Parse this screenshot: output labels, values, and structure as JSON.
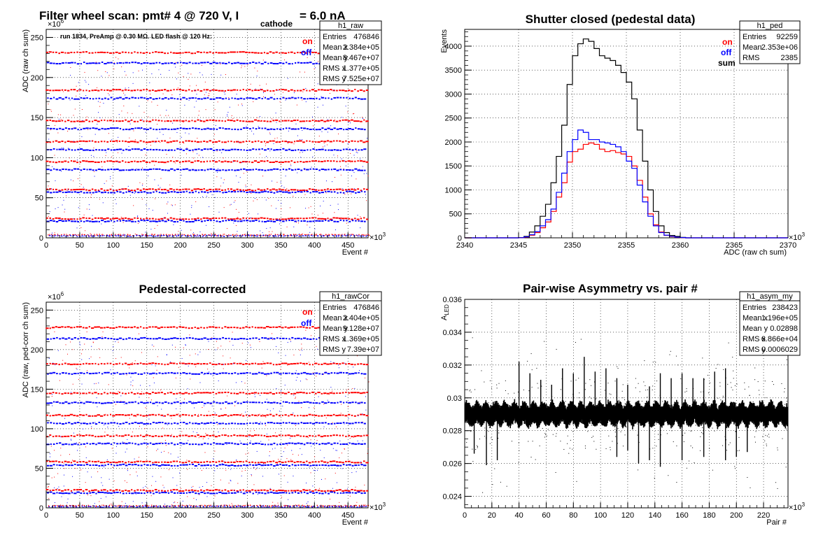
{
  "canvas": {
    "background": "#ffffff",
    "colors": {
      "on": "#ff0000",
      "off": "#0000ff",
      "sum": "#000000",
      "frame": "#000000",
      "grid": "#000000"
    }
  },
  "chart_data": [
    {
      "id": "raw",
      "type": "scatter",
      "title": "Filter wheel scan: pmt#   4 @   720 V, I",
      "title_sub": "cathode",
      "title_tail": "  = 6.0 nA",
      "annotation": "run 1834, PreAmp @ 0.30 MΩ. LED flash @  120 Hz:",
      "xlabel": "Event #",
      "ylabel": "ADC (raw ch sum)",
      "x_multiplier": "×10",
      "x_multiplier_exp": "3",
      "y_multiplier": "×10",
      "y_multiplier_exp": "6",
      "xlim": [
        0,
        480
      ],
      "ylim": [
        0,
        260
      ],
      "xticks": [
        0,
        50,
        100,
        150,
        200,
        250,
        300,
        350,
        400,
        450
      ],
      "yticks": [
        0,
        50,
        100,
        150,
        200,
        250
      ],
      "grid": true,
      "legend": {
        "position": "top-right",
        "entries": [
          {
            "name": "on",
            "color": "#ff0000"
          },
          {
            "name": "off",
            "color": "#0000ff"
          }
        ]
      },
      "stats": {
        "name": "h1_raw",
        "rows": [
          {
            "label": "Entries",
            "value": "476846"
          },
          {
            "label": "Mean x",
            "value": "2.384e+05"
          },
          {
            "label": "Mean y",
            "value": "8.467e+07"
          },
          {
            "label": "RMS x",
            "value": "1.377e+05"
          },
          {
            "label": "RMS y",
            "value": "7.525e+07"
          }
        ]
      },
      "series": [
        {
          "name": "on",
          "color": "#ff0000",
          "levels": [
            231,
            184,
            146,
            120,
            95,
            60,
            24,
            3
          ]
        },
        {
          "name": "off",
          "color": "#0000ff",
          "levels": [
            218,
            174,
            136,
            110,
            85,
            57,
            21,
            2
          ]
        }
      ],
      "cycle_period": 4.5
    },
    {
      "id": "ped",
      "type": "histogram",
      "title": "Shutter closed (pedestal data)",
      "xlabel": "ADC (raw ch sum)",
      "ylabel": "Events",
      "x_multiplier": "×10",
      "x_multiplier_exp": "3",
      "xlim": [
        2340,
        2370
      ],
      "ylim": [
        0,
        4350
      ],
      "xticks": [
        2340,
        2345,
        2350,
        2355,
        2360,
        2365,
        2370
      ],
      "yticks": [
        0,
        500,
        1000,
        1500,
        2000,
        2500,
        3000,
        3500,
        4000
      ],
      "grid": true,
      "legend": {
        "position": "top-right",
        "entries": [
          {
            "name": "on",
            "color": "#ff0000"
          },
          {
            "name": "off",
            "color": "#0000ff"
          },
          {
            "name": "sum",
            "color": "#000000"
          }
        ]
      },
      "stats": {
        "name": "h1_ped",
        "rows": [
          {
            "label": "Entries",
            "value": "92259"
          },
          {
            "label": "Mean",
            "value": "2.353e+06"
          },
          {
            "label": "RMS",
            "value": "2385"
          }
        ]
      },
      "bin_start": 2345,
      "bin_width": 0.5,
      "series": [
        {
          "name": "sum",
          "color": "#000000",
          "values": [
            5,
            30,
            120,
            250,
            450,
            700,
            1150,
            1700,
            2350,
            3200,
            3800,
            4050,
            4150,
            4100,
            3950,
            3800,
            3750,
            3700,
            3600,
            3450,
            3250,
            2900,
            2250,
            1600,
            1000,
            550,
            250,
            110,
            50,
            30,
            10,
            0
          ]
        },
        {
          "name": "on",
          "color": "#ff0000",
          "values": [
            2,
            15,
            55,
            110,
            210,
            330,
            550,
            850,
            1150,
            1580,
            1800,
            1850,
            1950,
            1980,
            1950,
            1850,
            1800,
            1820,
            1780,
            1750,
            1700,
            1500,
            1200,
            850,
            500,
            270,
            120,
            50,
            25,
            12,
            4,
            0
          ]
        },
        {
          "name": "off",
          "color": "#0000ff",
          "values": [
            3,
            20,
            65,
            130,
            250,
            380,
            600,
            950,
            1350,
            1800,
            2050,
            2250,
            2200,
            2050,
            2050,
            2000,
            1980,
            1950,
            1900,
            1800,
            1600,
            1450,
            1100,
            750,
            450,
            250,
            110,
            55,
            30,
            15,
            5,
            0
          ]
        }
      ]
    },
    {
      "id": "rawcor",
      "type": "scatter",
      "title": "Pedestal-corrected",
      "xlabel": "Event #",
      "ylabel": "ADC (raw, ped-corr ch sum)",
      "x_multiplier": "×10",
      "x_multiplier_exp": "3",
      "y_multiplier": "×10",
      "y_multiplier_exp": "6",
      "xlim": [
        0,
        480
      ],
      "ylim": [
        0,
        260
      ],
      "xticks": [
        0,
        50,
        100,
        150,
        200,
        250,
        300,
        350,
        400,
        450
      ],
      "yticks": [
        0,
        50,
        100,
        150,
        200,
        250
      ],
      "grid": true,
      "legend": {
        "position": "top-right",
        "entries": [
          {
            "name": "on",
            "color": "#ff0000"
          },
          {
            "name": "off",
            "color": "#0000ff"
          }
        ]
      },
      "stats": {
        "name": "h1_rawCor",
        "rows": [
          {
            "label": "Entries",
            "value": "476846"
          },
          {
            "label": "Mean x",
            "value": "2.404e+05"
          },
          {
            "label": "Mean y",
            "value": "9.128e+07"
          },
          {
            "label": "RMS x",
            "value": "1.369e+05"
          },
          {
            "label": "RMS y",
            "value": "7.39e+07"
          }
        ]
      },
      "series": [
        {
          "name": "on",
          "color": "#ff0000",
          "levels": [
            228,
            182,
            145,
            117,
            91,
            58,
            22,
            2
          ]
        },
        {
          "name": "off",
          "color": "#0000ff",
          "levels": [
            214,
            170,
            133,
            107,
            81,
            54,
            19,
            1
          ]
        }
      ],
      "cycle_period": 4.5
    },
    {
      "id": "asym",
      "type": "scatter",
      "title": "Pair-wise Asymmetry vs. pair #",
      "xlabel": "Pair #",
      "ylabel": "A",
      "ylabel_sub": "LED",
      "x_multiplier": "×10",
      "x_multiplier_exp": "3",
      "xlim": [
        0,
        238
      ],
      "ylim": [
        0.0233,
        0.036
      ],
      "xticks": [
        0,
        20,
        40,
        60,
        80,
        100,
        120,
        140,
        160,
        180,
        200,
        220
      ],
      "yticks": [
        0.024,
        0.026,
        0.028,
        0.03,
        0.032,
        0.034,
        0.036
      ],
      "ytick_labels": [
        "0.024",
        "0.026",
        "0.028",
        "0.03",
        "0.032",
        "0.034",
        "0.036"
      ],
      "grid": true,
      "stats": {
        "name": "h1_asym_my",
        "rows": [
          {
            "label": "Entries",
            "value": "238423"
          },
          {
            "label": "Mean x",
            "value": "1.196e+05"
          },
          {
            "label": "Mean y",
            "value": "0.02898"
          },
          {
            "label": "RMS x",
            "value": "6.866e+04"
          },
          {
            "label": "RMS y",
            "value": "0.0006029"
          }
        ]
      },
      "band_center": 0.029,
      "band_halfwidth": 0.0005,
      "spikes_up": [
        [
          40,
          0.0322
        ],
        [
          48,
          0.0315
        ],
        [
          56,
          0.0311
        ],
        [
          64,
          0.0308
        ],
        [
          72,
          0.0318
        ],
        [
          80,
          0.0315
        ],
        [
          88,
          0.0325
        ],
        [
          96,
          0.0316
        ],
        [
          104,
          0.0318
        ],
        [
          112,
          0.0312
        ],
        [
          120,
          0.0308
        ],
        [
          136,
          0.0307
        ],
        [
          144,
          0.0315
        ],
        [
          152,
          0.0312
        ],
        [
          160,
          0.0315
        ],
        [
          168,
          0.0312
        ],
        [
          176,
          0.0312
        ],
        [
          184,
          0.0316
        ],
        [
          192,
          0.0318
        ]
      ],
      "spikes_down": [
        [
          7,
          0.0266
        ],
        [
          16,
          0.0259
        ],
        [
          24,
          0.0262
        ],
        [
          112,
          0.0264
        ],
        [
          120,
          0.0268
        ],
        [
          128,
          0.026
        ],
        [
          136,
          0.0262
        ],
        [
          144,
          0.0258
        ],
        [
          160,
          0.0262
        ],
        [
          176,
          0.0264
        ],
        [
          192,
          0.0262
        ],
        [
          200,
          0.0264
        ],
        [
          208,
          0.0267
        ]
      ]
    }
  ]
}
